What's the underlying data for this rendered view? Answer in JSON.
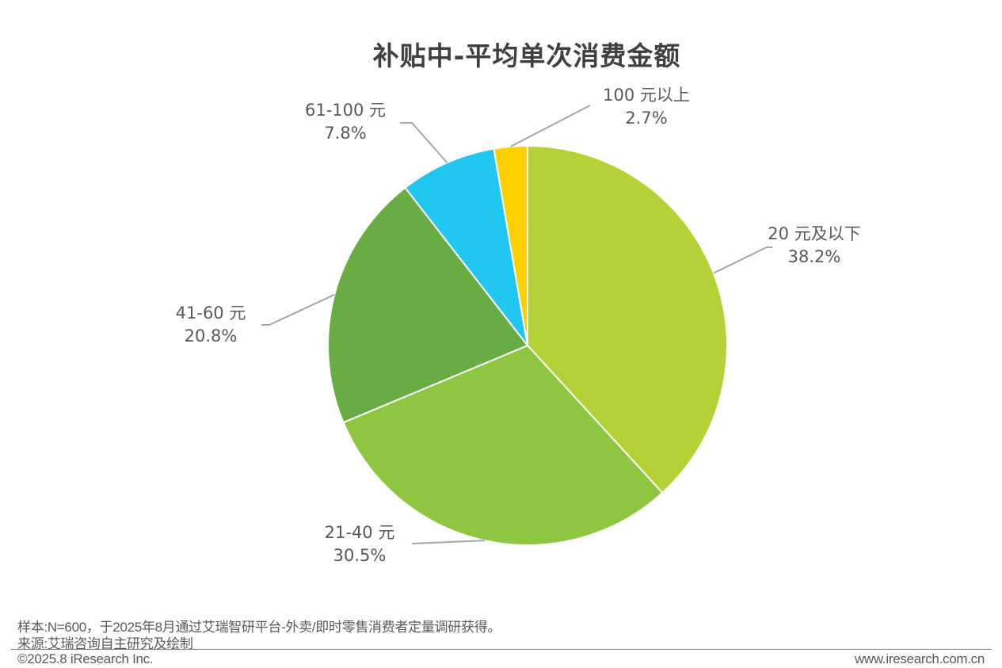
{
  "chart_data": {
    "type": "pie",
    "title": "补贴中-平均单次消费金额",
    "slices": [
      {
        "label": "20 元及以下",
        "value": 38.2,
        "value_label": "38.2%",
        "color": "#b3d236"
      },
      {
        "label": "21-40 元",
        "value": 30.5,
        "value_label": "30.5%",
        "color": "#8dc63f"
      },
      {
        "label": "41-60 元",
        "value": 20.8,
        "value_label": "20.8%",
        "color": "#67ad44"
      },
      {
        "label": "61-100 元",
        "value": 7.8,
        "value_label": "7.8%",
        "color": "#20c7f0"
      },
      {
        "label": "100 元以上",
        "value": 2.7,
        "value_label": "2.7%",
        "color": "#ffd000"
      }
    ],
    "start_angle_deg": 0,
    "direction": "clockwise",
    "leader_line_color": "#a6a6a6"
  },
  "footer": {
    "sample_note": "样本:N=600，于2025年8月通过艾瑞智研平台-外卖/即时零售消费者定量调研获得。",
    "source_note": "来源:艾瑞咨询自主研究及绘制",
    "copyright": "©2025.8 iResearch Inc.",
    "website": "www.iresearch.com.cn"
  }
}
